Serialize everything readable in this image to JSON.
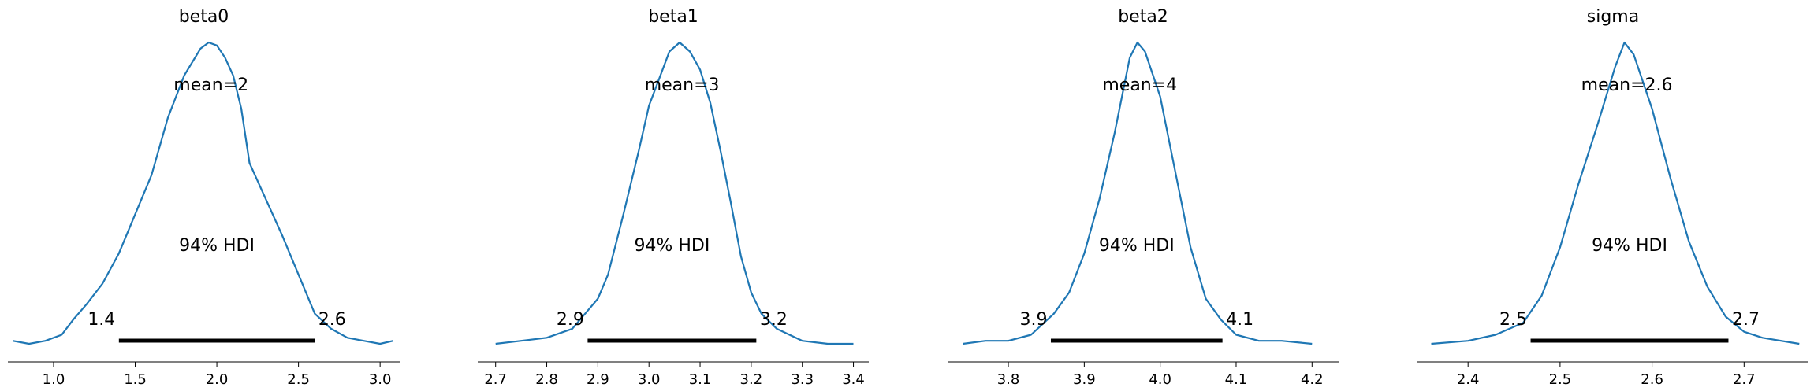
{
  "figure": {
    "colors": {
      "curve": "#1f77b4",
      "hdi_bar": "#000000",
      "axis": "#000000"
    }
  },
  "chart_data": [
    {
      "type": "line",
      "title": "beta0",
      "mean_label": "mean=2",
      "hdi_label": "94% HDI",
      "hdi": [
        1.4,
        2.6
      ],
      "hdi_low_label": "1.4",
      "hdi_high_label": "2.6",
      "xlim": [
        0.72,
        3.12
      ],
      "xticks": [
        1.0,
        1.5,
        2.0,
        2.5,
        3.0
      ],
      "xtick_labels": [
        "1.0",
        "1.5",
        "2.0",
        "2.5",
        "3.0"
      ],
      "x": [
        0.75,
        0.85,
        0.95,
        1.05,
        1.12,
        1.2,
        1.3,
        1.4,
        1.5,
        1.6,
        1.7,
        1.8,
        1.9,
        1.95,
        2.0,
        2.05,
        2.1,
        2.15,
        2.2,
        2.3,
        2.4,
        2.5,
        2.6,
        2.7,
        2.8,
        2.9,
        3.0,
        3.08
      ],
      "y": [
        0.01,
        0.0,
        0.01,
        0.03,
        0.08,
        0.13,
        0.2,
        0.3,
        0.43,
        0.56,
        0.75,
        0.89,
        0.98,
        1.0,
        0.99,
        0.95,
        0.89,
        0.78,
        0.6,
        0.48,
        0.36,
        0.23,
        0.1,
        0.05,
        0.02,
        0.01,
        0.0,
        0.01
      ]
    },
    {
      "type": "line",
      "title": "beta1",
      "mean_label": "mean=3",
      "hdi_label": "94% HDI",
      "hdi": [
        2.88,
        3.21
      ],
      "hdi_low_label": "2.9",
      "hdi_high_label": "3.2",
      "xlim": [
        2.665,
        3.43
      ],
      "xticks": [
        2.7,
        2.8,
        2.9,
        3.0,
        3.1,
        3.2,
        3.3,
        3.4
      ],
      "xtick_labels": [
        "2.7",
        "2.8",
        "2.9",
        "3.0",
        "3.1",
        "3.2",
        "3.3",
        "3.4"
      ],
      "x": [
        2.7,
        2.75,
        2.8,
        2.85,
        2.9,
        2.92,
        2.95,
        2.98,
        3.0,
        3.02,
        3.04,
        3.06,
        3.08,
        3.1,
        3.12,
        3.14,
        3.16,
        3.18,
        3.2,
        3.22,
        3.25,
        3.3,
        3.35,
        3.4
      ],
      "y": [
        0.0,
        0.01,
        0.02,
        0.05,
        0.15,
        0.23,
        0.43,
        0.64,
        0.79,
        0.88,
        0.97,
        1.0,
        0.97,
        0.91,
        0.8,
        0.64,
        0.47,
        0.29,
        0.17,
        0.1,
        0.05,
        0.01,
        0.0,
        0.0
      ]
    },
    {
      "type": "line",
      "title": "beta2",
      "mean_label": "mean=4",
      "hdi_label": "94% HDI",
      "hdi": [
        3.856,
        4.082
      ],
      "hdi_low_label": "3.9",
      "hdi_high_label": "4.1",
      "xlim": [
        3.72,
        4.235
      ],
      "xticks": [
        3.8,
        3.9,
        4.0,
        4.1,
        4.2
      ],
      "xtick_labels": [
        "3.8",
        "3.9",
        "4.0",
        "4.1",
        "4.2"
      ],
      "x": [
        3.74,
        3.77,
        3.8,
        3.83,
        3.86,
        3.88,
        3.9,
        3.92,
        3.94,
        3.96,
        3.97,
        3.98,
        4.0,
        4.02,
        4.04,
        4.06,
        4.08,
        4.1,
        4.13,
        4.16,
        4.2
      ],
      "y": [
        0.0,
        0.01,
        0.01,
        0.03,
        0.1,
        0.17,
        0.3,
        0.48,
        0.7,
        0.95,
        1.0,
        0.97,
        0.82,
        0.57,
        0.32,
        0.15,
        0.08,
        0.03,
        0.01,
        0.01,
        0.0
      ]
    },
    {
      "type": "line",
      "title": "sigma",
      "mean_label": "mean=2.6",
      "hdi_label": "94% HDI",
      "hdi": [
        2.468,
        2.683
      ],
      "hdi_low_label": "2.5",
      "hdi_high_label": "2.7",
      "xlim": [
        2.345,
        2.77
      ],
      "xticks": [
        2.4,
        2.5,
        2.6,
        2.7
      ],
      "xtick_labels": [
        "2.4",
        "2.5",
        "2.6",
        "2.7"
      ],
      "x": [
        2.36,
        2.4,
        2.43,
        2.46,
        2.48,
        2.5,
        2.52,
        2.54,
        2.56,
        2.57,
        2.58,
        2.6,
        2.62,
        2.64,
        2.66,
        2.68,
        2.7,
        2.72,
        2.76
      ],
      "y": [
        0.0,
        0.01,
        0.03,
        0.07,
        0.16,
        0.32,
        0.53,
        0.72,
        0.92,
        1.0,
        0.96,
        0.78,
        0.55,
        0.34,
        0.19,
        0.09,
        0.04,
        0.02,
        0.0
      ]
    }
  ]
}
